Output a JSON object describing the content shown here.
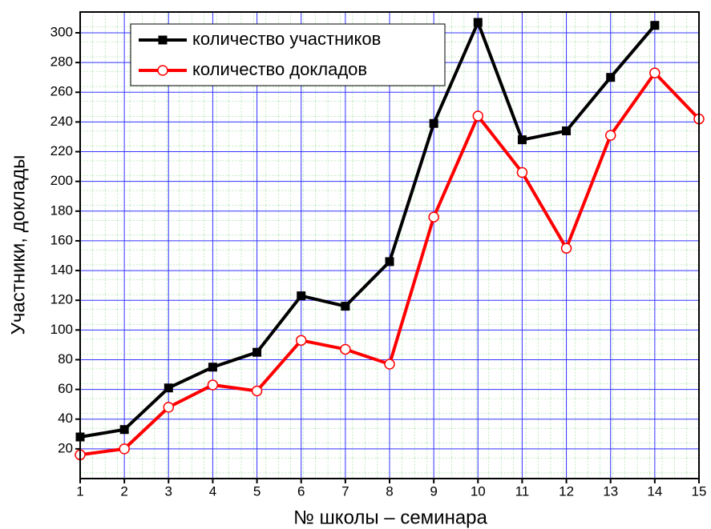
{
  "chart_data": {
    "type": "line",
    "x_label": "№ школы – семинара",
    "y_label": "Участники, доклады",
    "x": [
      1,
      2,
      3,
      4,
      5,
      6,
      7,
      8,
      9,
      10,
      11,
      12,
      13,
      14,
      15
    ],
    "series": [
      {
        "name": "количество участников",
        "color": "#000000",
        "marker": "square",
        "values": [
          28,
          33,
          61,
          75,
          85,
          123,
          116,
          146,
          239,
          307,
          228,
          234,
          270,
          305,
          null
        ]
      },
      {
        "name": "количество докладов",
        "color": "#ff0000",
        "marker": "open-circle",
        "values": [
          16,
          20,
          48,
          63,
          59,
          93,
          87,
          77,
          176,
          244,
          206,
          155,
          231,
          273,
          242
        ]
      }
    ],
    "xlim": [
      1,
      15
    ],
    "xticks": [
      1,
      2,
      3,
      4,
      5,
      6,
      7,
      8,
      9,
      10,
      11,
      12,
      13,
      14,
      15
    ],
    "ylim": [
      0,
      314
    ],
    "yticks": [
      20,
      40,
      60,
      80,
      100,
      120,
      140,
      160,
      180,
      200,
      220,
      240,
      260,
      280,
      300
    ],
    "grid": true,
    "legend": "top-left"
  }
}
